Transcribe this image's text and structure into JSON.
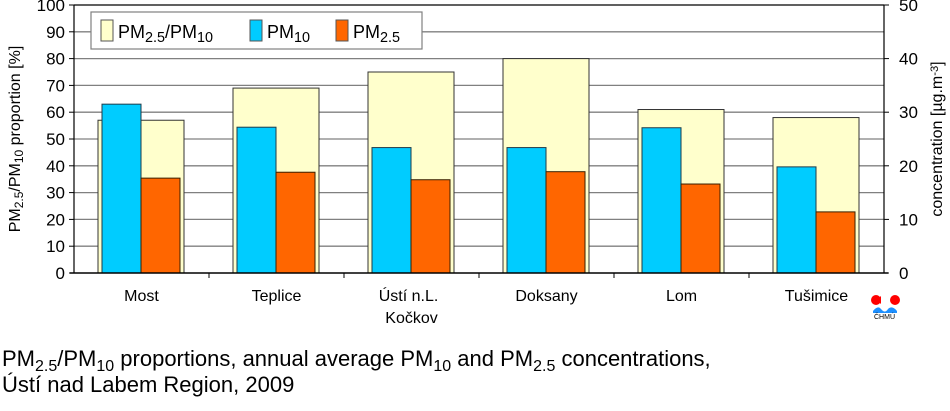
{
  "chart_data": {
    "type": "bar",
    "title": "",
    "categories": [
      "Most",
      "Teplice",
      "Ústí n.L.\nKočkov",
      "Doksany",
      "Lom",
      "Tušimice"
    ],
    "category_lines": [
      [
        "Most"
      ],
      [
        "Teplice"
      ],
      [
        "Ústí n.L.",
        "Kočkov"
      ],
      [
        "Doksany"
      ],
      [
        "Lom"
      ],
      [
        "Tušimice"
      ]
    ],
    "series": [
      {
        "name": "PM2.5/PM10",
        "axis": "left",
        "color": "#ffffcc",
        "values": [
          57,
          69,
          75,
          80,
          61,
          58
        ]
      },
      {
        "name": "PM10",
        "axis": "right",
        "color": "#00ccff",
        "values": [
          31.5,
          27.2,
          23.4,
          23.4,
          27.1,
          19.8
        ]
      },
      {
        "name": "PM2.5",
        "axis": "right",
        "color": "#ff6600",
        "values": [
          17.7,
          18.8,
          17.4,
          18.9,
          16.6,
          11.4
        ]
      }
    ],
    "left_axis": {
      "label_parts": [
        [
          "PM",
          ""
        ],
        [
          "2.5",
          "sub"
        ],
        [
          "/PM",
          ""
        ],
        [
          "10",
          "sub"
        ],
        [
          " proportion [%]",
          ""
        ]
      ],
      "min": 0,
      "max": 100,
      "step": 10,
      "ticks": [
        "0",
        "10",
        "20",
        "30",
        "40",
        "50",
        "60",
        "70",
        "80",
        "90",
        "100"
      ]
    },
    "right_axis": {
      "label": "concentration [µg.m-3]",
      "label_parts": [
        [
          "concentration [µg.m",
          ""
        ],
        [
          "-3",
          "sup"
        ],
        [
          "]",
          ""
        ]
      ],
      "min": 0,
      "max": 50,
      "step": 10,
      "ticks": [
        "0",
        "10",
        "20",
        "30",
        "40",
        "50"
      ]
    },
    "legend": {
      "position": "top-left",
      "items": [
        {
          "parts": [
            [
              "PM",
              ""
            ],
            [
              "2.5",
              "sub"
            ],
            [
              "/PM",
              ""
            ],
            [
              "10",
              "sub"
            ]
          ],
          "color": "#ffffcc"
        },
        {
          "parts": [
            [
              "PM",
              ""
            ],
            [
              "10",
              "sub"
            ]
          ],
          "color": "#00ccff"
        },
        {
          "parts": [
            [
              "PM",
              ""
            ],
            [
              "2.5",
              "sub"
            ]
          ],
          "color": "#ff6600"
        }
      ]
    },
    "grid": true
  },
  "caption": {
    "line1_a": "PM",
    "line1_sub1": "2.5",
    "line1_b": "/PM",
    "line1_sub2": "10",
    "line1_c": " proportions, annual average PM",
    "line1_sub3": "10",
    "line1_d": " and PM",
    "line1_sub4": "2.5",
    "line1_e": " concentrations,",
    "line2": "Ústí nad Labem Region, 2009"
  },
  "logo": {
    "text": "ČHMÚ",
    "colors": {
      "red": "#ff0000",
      "blue": "#1e90ff"
    }
  }
}
